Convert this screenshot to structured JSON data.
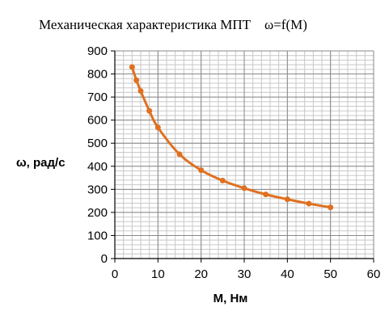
{
  "chart_data": {
    "type": "line",
    "title": "Механическая характеристика МПТ    ω=f(M)",
    "xlabel": "M, Нм",
    "ylabel": "ω, рад/с",
    "xlim": [
      0,
      60
    ],
    "ylim": [
      0,
      900
    ],
    "x_ticks": [
      0,
      10,
      20,
      30,
      40,
      50,
      60
    ],
    "y_ticks": [
      0,
      100,
      200,
      300,
      400,
      500,
      600,
      700,
      800,
      900
    ],
    "x_minor_step": 2,
    "y_minor_step": 20,
    "grid": true,
    "legend": "none",
    "series": [
      {
        "color": "#e07020",
        "x": [
          4,
          5,
          6,
          8,
          10,
          15,
          20,
          25,
          30,
          35,
          40,
          45,
          50
        ],
        "y": [
          830,
          773,
          726,
          640,
          568,
          452,
          383,
          338,
          305,
          278,
          257,
          238,
          222
        ]
      }
    ]
  }
}
